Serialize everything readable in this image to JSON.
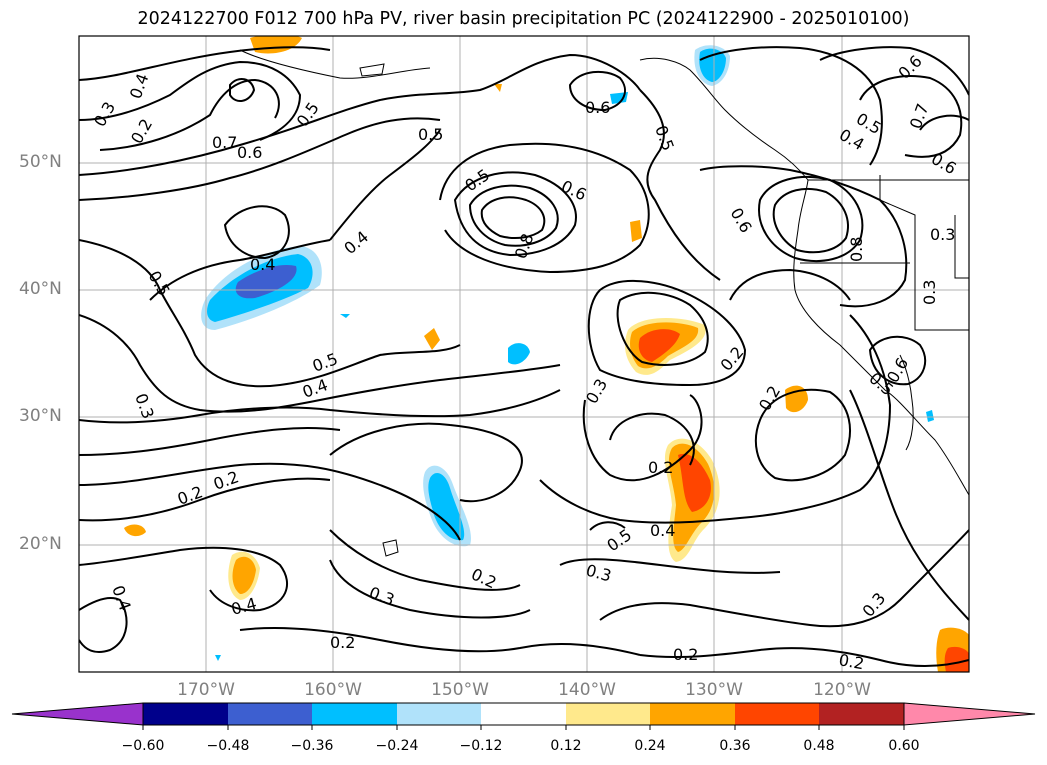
{
  "title": "2024122700 F012 700 hPa PV, river basin precipitation PC (2024122900 - 2025010100)",
  "latitude_labels": [
    "50°N",
    "40°N",
    "30°N",
    "20°N"
  ],
  "longitude_labels": [
    "170°W",
    "160°W",
    "150°W",
    "140°W",
    "130°W",
    "120°W"
  ],
  "colorbar": {
    "tick_labels": [
      "−0.60",
      "−0.48",
      "−0.36",
      "−0.24",
      "−0.12",
      "0.12",
      "0.24",
      "0.36",
      "0.48",
      "0.60"
    ],
    "colors": [
      "#9932cc",
      "#00008b",
      "#3d5fd0",
      "#00bfff",
      "#b0e2fa",
      "#ffffff",
      "#ffe98c",
      "#ffa500",
      "#ff4500",
      "#b22222",
      "#ff88aa"
    ],
    "extend": "both"
  },
  "contour_labels": [
    "0.2",
    "0.3",
    "0.4",
    "0.5",
    "0.6",
    "0.7",
    "0.8"
  ],
  "chart_data": {
    "type": "contour-map",
    "title": "2024122700 F012 700 hPa PV, river basin precipitation PC (2024122900 - 2025010100)",
    "lon_range": [
      -180,
      -110
    ],
    "lat_range": [
      10,
      60
    ],
    "grid": true,
    "contour_field": "700 hPa PV",
    "contour_levels": [
      0.2,
      0.3,
      0.4,
      0.5,
      0.6,
      0.7,
      0.8
    ],
    "fill_field": "river basin precipitation PC",
    "fill_levels": [
      -0.6,
      -0.48,
      -0.36,
      -0.24,
      -0.12,
      0.12,
      0.24,
      0.36,
      0.48,
      0.6
    ],
    "colorbar_extend": "both"
  }
}
